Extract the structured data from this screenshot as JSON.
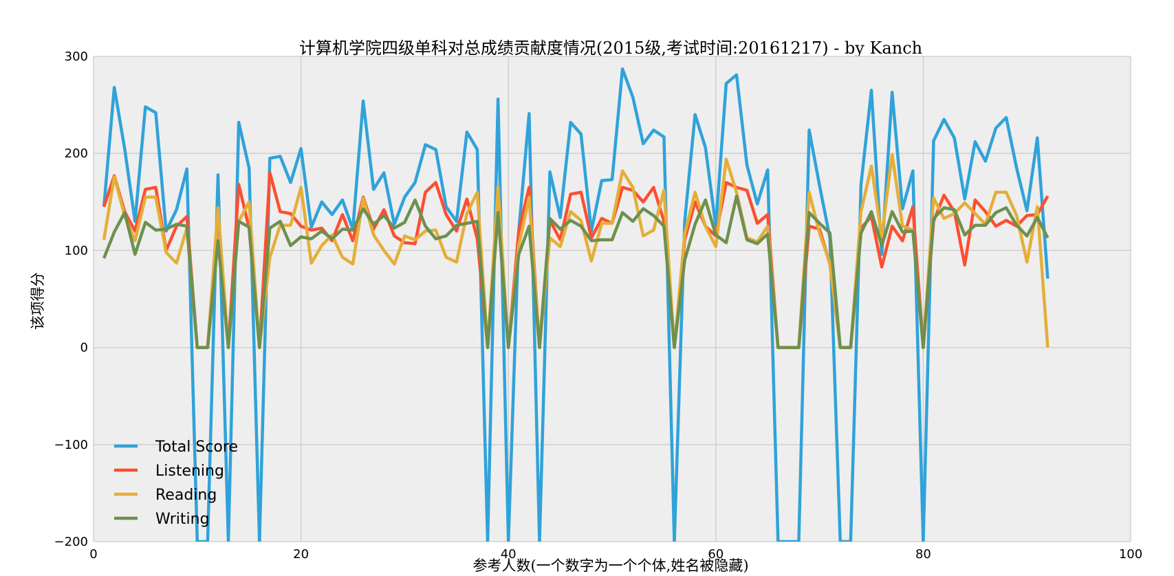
{
  "chart_data": {
    "type": "line",
    "title": "计算机学院四级单科对总成绩贡献度情况(2015级,考试时间:20161217) - by Kanch",
    "xlabel": "参考人数(一个数字为一个个体,姓名被隐藏)",
    "ylabel": "该项得分",
    "xlim": [
      0,
      100
    ],
    "ylim": [
      -200,
      300
    ],
    "xticks": [
      0,
      20,
      40,
      60,
      80,
      100
    ],
    "yticks": [
      -200,
      -100,
      0,
      100,
      200,
      300
    ],
    "xtick_labels": [
      "0",
      "20",
      "40",
      "60",
      "80",
      "100"
    ],
    "ytick_labels": [
      "−200",
      "−100",
      "0",
      "100",
      "200",
      "300"
    ],
    "grid": true,
    "legend_position": "lower-left",
    "background": "#eeeeee",
    "x": [
      1,
      2,
      3,
      4,
      5,
      6,
      7,
      8,
      9,
      10,
      11,
      12,
      13,
      14,
      15,
      16,
      17,
      18,
      19,
      20,
      21,
      22,
      23,
      24,
      25,
      26,
      27,
      28,
      29,
      30,
      31,
      32,
      33,
      34,
      35,
      36,
      37,
      38,
      39,
      40,
      41,
      42,
      43,
      44,
      45,
      46,
      47,
      48,
      49,
      50,
      51,
      52,
      53,
      54,
      55,
      56,
      57,
      58,
      59,
      60,
      61,
      62,
      63,
      64,
      65,
      66,
      67,
      68,
      69,
      70,
      71,
      72,
      73,
      74,
      75,
      76,
      77,
      78,
      79,
      80,
      81,
      82,
      83,
      84,
      85,
      86,
      87,
      88,
      89,
      90,
      91,
      92
    ],
    "series": [
      {
        "name": "Total Score",
        "color": "#30a2da",
        "values": [
          145,
          268,
          205,
          130,
          248,
          242,
          120,
          142,
          184,
          -200,
          -200,
          178,
          -200,
          232,
          185,
          -200,
          195,
          197,
          170,
          205,
          124,
          150,
          137,
          152,
          122,
          254,
          163,
          180,
          127,
          155,
          170,
          209,
          204,
          145,
          130,
          222,
          204,
          -200,
          256,
          -200,
          120,
          241,
          -200,
          181,
          134,
          232,
          220,
          120,
          172,
          173,
          287,
          258,
          210,
          224,
          217,
          -200,
          130,
          240,
          206,
          125,
          272,
          281,
          188,
          148,
          183,
          -200,
          -200,
          -200,
          224,
          167,
          113,
          -200,
          -200,
          168,
          265,
          96,
          263,
          143,
          182,
          -200,
          213,
          235,
          216,
          153,
          212,
          192,
          226,
          237,
          185,
          141,
          216,
          71
        ]
      },
      {
        "name": "Listening",
        "color": "#fc4f30",
        "values": [
          145,
          177,
          140,
          120,
          163,
          165,
          100,
          125,
          135,
          0,
          0,
          140,
          0,
          168,
          123,
          0,
          180,
          140,
          138,
          125,
          121,
          123,
          110,
          137,
          110,
          155,
          122,
          142,
          115,
          108,
          107,
          160,
          170,
          137,
          120,
          153,
          112,
          0,
          140,
          0,
          120,
          165,
          0,
          131,
          111,
          158,
          160,
          113,
          133,
          128,
          165,
          162,
          150,
          165,
          130,
          0,
          111,
          150,
          125,
          115,
          170,
          165,
          162,
          128,
          137,
          0,
          0,
          0,
          125,
          122,
          86,
          0,
          0,
          123,
          135,
          83,
          125,
          110,
          145,
          0,
          130,
          157,
          140,
          85,
          152,
          140,
          125,
          131,
          125,
          136,
          137,
          156
        ]
      },
      {
        "name": "Reading",
        "color": "#e5ae38",
        "values": [
          111,
          176,
          136,
          110,
          155,
          155,
          98,
          87,
          123,
          0,
          0,
          144,
          0,
          130,
          150,
          0,
          93,
          126,
          126,
          165,
          87,
          105,
          116,
          93,
          86,
          154,
          116,
          100,
          86,
          115,
          111,
          120,
          121,
          93,
          88,
          138,
          160,
          0,
          166,
          0,
          105,
          155,
          0,
          113,
          104,
          140,
          131,
          89,
          128,
          128,
          182,
          165,
          115,
          121,
          162,
          0,
          117,
          160,
          125,
          104,
          194,
          160,
          113,
          109,
          125,
          0,
          0,
          0,
          160,
          118,
          87,
          0,
          0,
          140,
          187,
          114,
          199,
          125,
          121,
          0,
          154,
          133,
          138,
          149,
          138,
          127,
          160,
          160,
          136,
          88,
          145,
          0
        ]
      },
      {
        "name": "Writing",
        "color": "#6d904f",
        "values": [
          92,
          119,
          139,
          96,
          129,
          121,
          122,
          127,
          125,
          0,
          0,
          110,
          0,
          130,
          124,
          0,
          123,
          130,
          105,
          114,
          112,
          120,
          112,
          122,
          121,
          143,
          127,
          136,
          123,
          129,
          152,
          125,
          112,
          115,
          126,
          128,
          130,
          0,
          139,
          0,
          96,
          125,
          0,
          133,
          122,
          131,
          125,
          110,
          111,
          111,
          139,
          130,
          143,
          136,
          125,
          0,
          90,
          127,
          152,
          116,
          108,
          156,
          111,
          107,
          117,
          0,
          0,
          0,
          139,
          128,
          118,
          0,
          0,
          118,
          140,
          105,
          140,
          119,
          120,
          0,
          133,
          144,
          142,
          116,
          126,
          126,
          139,
          144,
          126,
          115,
          134,
          113
        ]
      }
    ]
  }
}
